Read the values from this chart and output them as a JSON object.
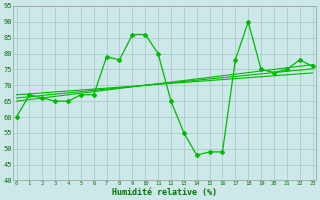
{
  "xlabel": "Humidité relative (%)",
  "bg_color": "#cce8e8",
  "grid_color": "#aacccc",
  "line_color": "#00bb00",
  "x_values": [
    0,
    1,
    2,
    3,
    4,
    5,
    6,
    7,
    8,
    9,
    10,
    11,
    12,
    13,
    14,
    15,
    16,
    17,
    18,
    19,
    20,
    21,
    22,
    23
  ],
  "series1": [
    60,
    67,
    66,
    65,
    65,
    67,
    67,
    79,
    78,
    86,
    86,
    80,
    65,
    55,
    48,
    49,
    49,
    78,
    90,
    75,
    74,
    75,
    78,
    76
  ],
  "series_linear1": [
    65.0,
    65.5,
    66.0,
    66.5,
    67.0,
    67.5,
    68.0,
    68.5,
    69.0,
    69.5,
    70.0,
    70.5,
    71.0,
    71.5,
    72.0,
    72.5,
    73.0,
    73.5,
    74.0,
    74.5,
    75.0,
    75.5,
    76.0,
    76.5
  ],
  "series_linear2": [
    66.0,
    66.4,
    66.8,
    67.2,
    67.6,
    68.0,
    68.4,
    68.8,
    69.2,
    69.6,
    70.0,
    70.4,
    70.8,
    71.2,
    71.6,
    72.0,
    72.4,
    72.8,
    73.2,
    73.6,
    74.0,
    74.4,
    74.8,
    75.2
  ],
  "series_linear3": [
    67.0,
    67.3,
    67.6,
    67.9,
    68.2,
    68.5,
    68.8,
    69.1,
    69.4,
    69.7,
    70.0,
    70.3,
    70.6,
    70.9,
    71.2,
    71.5,
    71.8,
    72.1,
    72.4,
    72.7,
    73.0,
    73.3,
    73.6,
    73.9
  ],
  "ylim": [
    40,
    95
  ],
  "yticks": [
    40,
    45,
    50,
    55,
    60,
    65,
    70,
    75,
    80,
    85,
    90,
    95
  ],
  "xticks": [
    0,
    1,
    2,
    3,
    4,
    5,
    6,
    7,
    8,
    9,
    10,
    11,
    12,
    13,
    14,
    15,
    16,
    17,
    18,
    19,
    20,
    21,
    22,
    23
  ],
  "xlim": [
    -0.3,
    23.3
  ]
}
